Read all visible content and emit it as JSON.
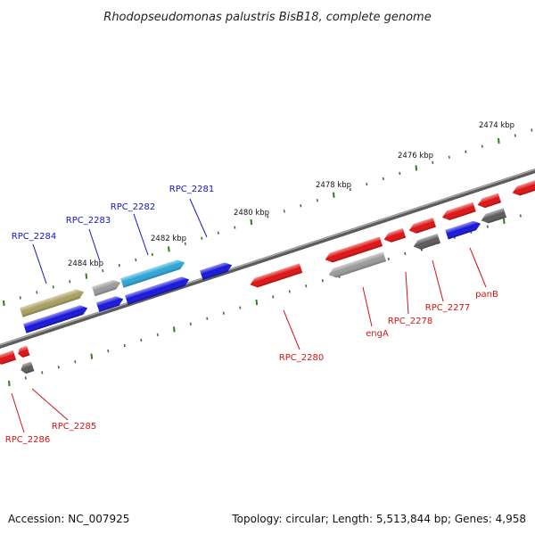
{
  "title": "Rhodopseudomonas palustris BisB18, complete genome",
  "footer": {
    "accession": "Accession: NC_007925",
    "summary": "Topology: circular; Length: 5,513,844 bp; Genes: 4,958"
  },
  "colors": {
    "backbone": "#7a7a7a",
    "tick": "#2f7d1e",
    "label_plus": "#1414c8",
    "label_minus": "#d21414",
    "blue_gene": "#1414dc",
    "cyan_gene": "#2aa6d6",
    "olive_gene": "#a8a060",
    "red_gene": "#e01010",
    "grey_gene": "#9a9a9a",
    "dark_gene": "#5a5a5a"
  },
  "ticks": [
    {
      "label": "2474 kbp"
    },
    {
      "label": "2476 kbp"
    },
    {
      "label": "2478 kbp"
    },
    {
      "label": "2480 kbp"
    },
    {
      "label": "2482 kbp"
    },
    {
      "label": "2484 kbp"
    }
  ],
  "gene_labels": [
    {
      "name": "RPC_2281",
      "strand": "plus"
    },
    {
      "name": "RPC_2282",
      "strand": "plus"
    },
    {
      "name": "RPC_2283",
      "strand": "plus"
    },
    {
      "name": "RPC_2284",
      "strand": "plus"
    },
    {
      "name": "RPC_2280",
      "strand": "minus"
    },
    {
      "name": "engA",
      "strand": "minus"
    },
    {
      "name": "RPC_2278",
      "strand": "minus"
    },
    {
      "name": "RPC_2277",
      "strand": "minus"
    },
    {
      "name": "panB",
      "strand": "minus"
    },
    {
      "name": "RPC_2285",
      "strand": "minus"
    },
    {
      "name": "RPC_2286",
      "strand": "minus"
    }
  ]
}
